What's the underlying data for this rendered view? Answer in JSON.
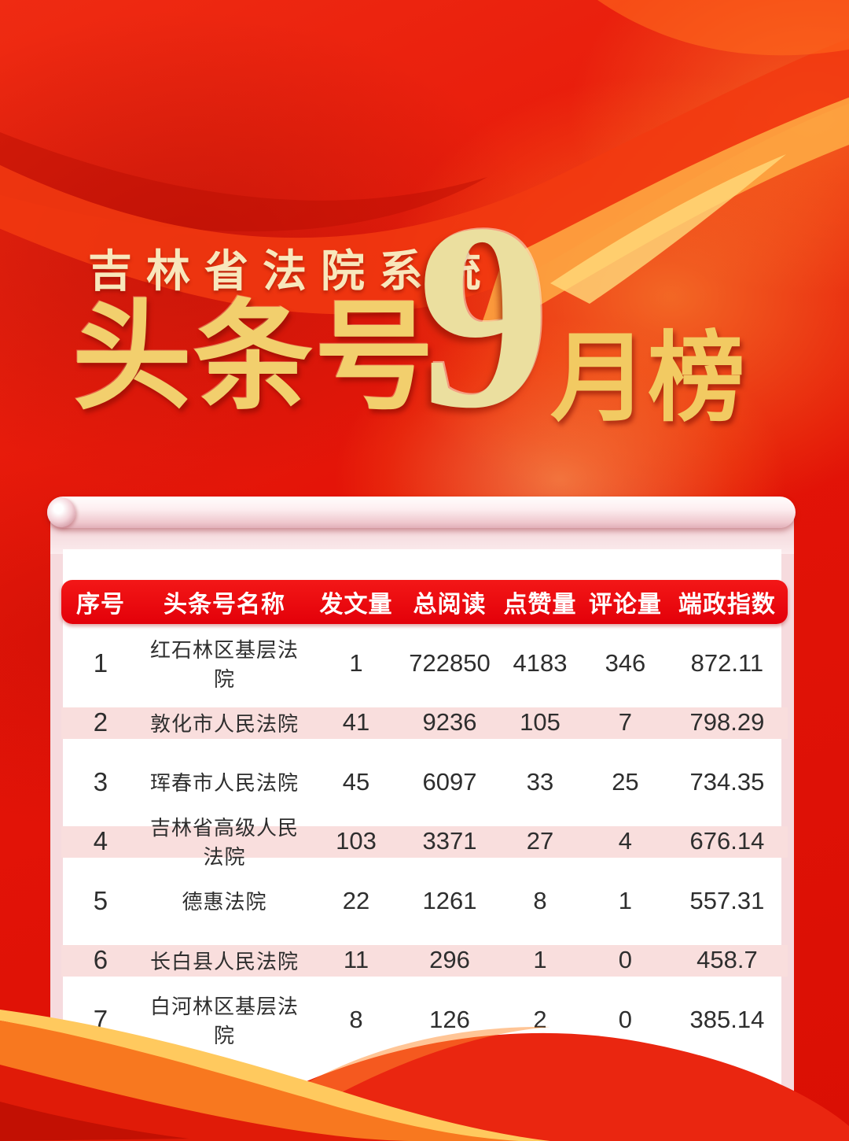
{
  "poster": {
    "subtitle": "吉林省法院系统",
    "title": {
      "prefix": "头条号",
      "month": "9",
      "suffix": "月榜"
    }
  },
  "table": {
    "headers": [
      "序号",
      "头条号名称",
      "发文量",
      "总阅读",
      "点赞量",
      "评论量",
      "端政指数"
    ],
    "rows": [
      {
        "rank": "1",
        "name": "红石林区基层法院",
        "posts": "1",
        "reads": "722850",
        "likes": "4183",
        "comments": "346",
        "index": "872.11"
      },
      {
        "rank": "2",
        "name": "敦化市人民法院",
        "posts": "41",
        "reads": "9236",
        "likes": "105",
        "comments": "7",
        "index": "798.29"
      },
      {
        "rank": "3",
        "name": "珲春市人民法院",
        "posts": "45",
        "reads": "6097",
        "likes": "33",
        "comments": "25",
        "index": "734.35"
      },
      {
        "rank": "4",
        "name": "吉林省高级人民法院",
        "posts": "103",
        "reads": "3371",
        "likes": "27",
        "comments": "4",
        "index": "676.14"
      },
      {
        "rank": "5",
        "name": "德惠法院",
        "posts": "22",
        "reads": "1261",
        "likes": "8",
        "comments": "1",
        "index": "557.31"
      },
      {
        "rank": "6",
        "name": "长白县人民法院",
        "posts": "11",
        "reads": "296",
        "likes": "1",
        "comments": "0",
        "index": "458.7"
      },
      {
        "rank": "7",
        "name": "白河林区基层法院",
        "posts": "8",
        "reads": "126",
        "likes": "2",
        "comments": "0",
        "index": "385.14"
      }
    ]
  },
  "colors": {
    "background_red": "#e3150a",
    "header_red": "#e8000f",
    "row_pink": "#f9dedd",
    "title_gold": "#f2cf6d",
    "month_gold": "#ebdf9f",
    "subtitle_gold": "#f8e7bc",
    "scroll_pink": "#f6dbde",
    "card_white": "#ffffff"
  },
  "chart_data": {
    "type": "table",
    "title": "吉林省法院系统头条号9月榜",
    "columns": [
      "序号",
      "头条号名称",
      "发文量",
      "总阅读",
      "点赞量",
      "评论量",
      "端政指数"
    ],
    "rows": [
      [
        1,
        "红石林区基层法院",
        1,
        722850,
        4183,
        346,
        872.11
      ],
      [
        2,
        "敦化市人民法院",
        41,
        9236,
        105,
        7,
        798.29
      ],
      [
        3,
        "珲春市人民法院",
        45,
        6097,
        33,
        25,
        734.35
      ],
      [
        4,
        "吉林省高级人民法院",
        103,
        3371,
        27,
        4,
        676.14
      ],
      [
        5,
        "德惠法院",
        22,
        1261,
        8,
        1,
        557.31
      ],
      [
        6,
        "长白县人民法院",
        11,
        296,
        1,
        0,
        458.7
      ],
      [
        7,
        "白河林区基层法院",
        8,
        126,
        2,
        0,
        385.14
      ]
    ]
  }
}
